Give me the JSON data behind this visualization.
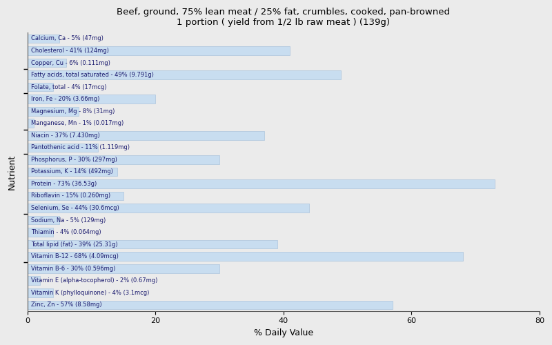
{
  "title": "Beef, ground, 75% lean meat / 25% fat, crumbles, cooked, pan-browned\n1 portion ( yield from 1/2 lb raw meat ) (139g)",
  "xlabel": "% Daily Value",
  "ylabel": "Nutrient",
  "background_color": "#ebebeb",
  "bar_color": "#c8ddf0",
  "bar_edge_color": "#a0bcd8",
  "text_color": "#1a1a6e",
  "xlim": [
    0,
    80
  ],
  "tick_positions": [
    0,
    20,
    40,
    60,
    80
  ],
  "nutrients": [
    {
      "name": "Calcium, Ca - 5% (47mg)",
      "value": 5
    },
    {
      "name": "Cholesterol - 41% (124mg)",
      "value": 41
    },
    {
      "name": "Copper, Cu - 6% (0.111mg)",
      "value": 6
    },
    {
      "name": "Fatty acids, total saturated - 49% (9.791g)",
      "value": 49
    },
    {
      "name": "Folate, total - 4% (17mcg)",
      "value": 4
    },
    {
      "name": "Iron, Fe - 20% (3.66mg)",
      "value": 20
    },
    {
      "name": "Magnesium, Mg - 8% (31mg)",
      "value": 8
    },
    {
      "name": "Manganese, Mn - 1% (0.017mg)",
      "value": 1
    },
    {
      "name": "Niacin - 37% (7.430mg)",
      "value": 37
    },
    {
      "name": "Pantothenic acid - 11% (1.119mg)",
      "value": 11
    },
    {
      "name": "Phosphorus, P - 30% (297mg)",
      "value": 30
    },
    {
      "name": "Potassium, K - 14% (492mg)",
      "value": 14
    },
    {
      "name": "Protein - 73% (36.53g)",
      "value": 73
    },
    {
      "name": "Riboflavin - 15% (0.260mg)",
      "value": 15
    },
    {
      "name": "Selenium, Se - 44% (30.6mcg)",
      "value": 44
    },
    {
      "name": "Sodium, Na - 5% (129mg)",
      "value": 5
    },
    {
      "name": "Thiamin - 4% (0.064mg)",
      "value": 4
    },
    {
      "name": "Total lipid (fat) - 39% (25.31g)",
      "value": 39
    },
    {
      "name": "Vitamin B-12 - 68% (4.09mcg)",
      "value": 68
    },
    {
      "name": "Vitamin B-6 - 30% (0.596mg)",
      "value": 30
    },
    {
      "name": "Vitamin E (alpha-tocopherol) - 2% (0.67mg)",
      "value": 2
    },
    {
      "name": "Vitamin K (phylloquinone) - 4% (3.1mcg)",
      "value": 4
    },
    {
      "name": "Zinc, Zn - 57% (8.58mg)",
      "value": 57
    }
  ]
}
